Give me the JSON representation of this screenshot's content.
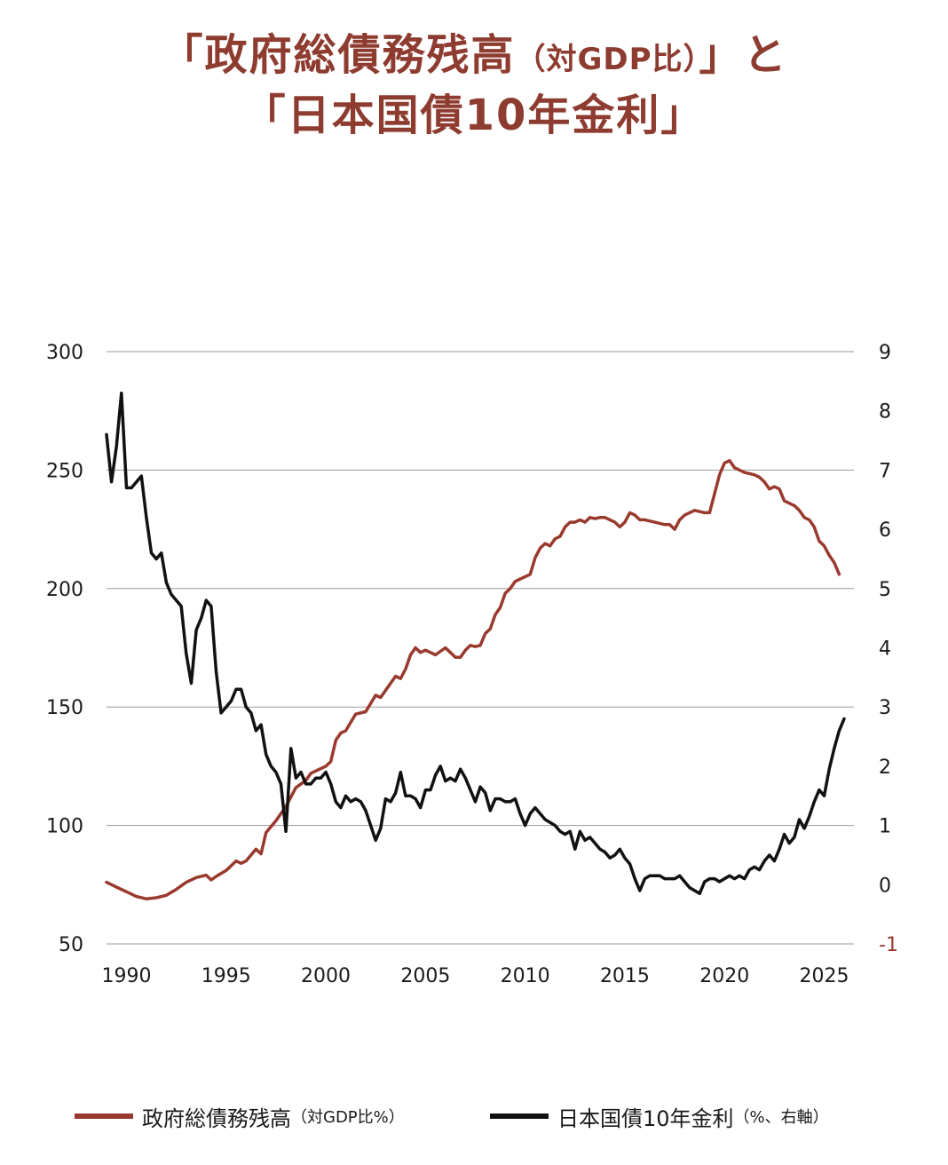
{
  "title": {
    "line1_main": "「政府総債務残高",
    "line1_paren": "（対GDP比）",
    "line1_end": "」と",
    "line2": "「日本国債10年金利」"
  },
  "legend": {
    "debt_label": "政府総債務残高",
    "debt_paren": "（対GDP比%）",
    "yield_label": "日本国債10年金利",
    "yield_paren": "（%、右軸）"
  },
  "colors": {
    "debt": "#9a3a2e",
    "yield": "#111111",
    "grid": "#9a9a9a",
    "right_axis_negative": "#9a3a2e"
  },
  "chart_data": {
    "type": "line",
    "left_axis": {
      "ylim": [
        50,
        300
      ],
      "ticks": [
        "300",
        "250",
        "200",
        "150",
        "100",
        "50"
      ]
    },
    "right_axis": {
      "ylim": [
        -1,
        9
      ],
      "ticks": [
        "9",
        "8",
        "7",
        "6",
        "5",
        "4",
        "3",
        "2",
        "1",
        "0",
        "-1"
      ]
    },
    "x_axis": {
      "xlim": [
        1989,
        2026
      ],
      "ticks": [
        "1990",
        "1995",
        "2000",
        "2005",
        "2010",
        "2015",
        "2020",
        "2025"
      ]
    },
    "grid": "horizontal",
    "series": [
      {
        "name": "政府総債務残高（対GDP比%）",
        "axis": "left",
        "points": [
          [
            1989.0,
            76
          ],
          [
            1989.5,
            74
          ],
          [
            1990.0,
            72
          ],
          [
            1990.5,
            70
          ],
          [
            1991.0,
            69
          ],
          [
            1991.5,
            69.5
          ],
          [
            1992.0,
            70.5
          ],
          [
            1992.5,
            73
          ],
          [
            1993.0,
            76
          ],
          [
            1993.5,
            78
          ],
          [
            1994.0,
            79
          ],
          [
            1994.25,
            77
          ],
          [
            1994.5,
            78.5
          ],
          [
            1995.0,
            81
          ],
          [
            1995.5,
            85
          ],
          [
            1995.75,
            84
          ],
          [
            1996.0,
            85
          ],
          [
            1996.5,
            90
          ],
          [
            1996.75,
            88
          ],
          [
            1997.0,
            97
          ],
          [
            1997.5,
            102
          ],
          [
            1998.0,
            108
          ],
          [
            1998.5,
            116
          ],
          [
            1999.0,
            119
          ],
          [
            1999.25,
            122
          ],
          [
            1999.5,
            123
          ],
          [
            2000.0,
            125
          ],
          [
            2000.25,
            127
          ],
          [
            2000.5,
            136
          ],
          [
            2000.75,
            139
          ],
          [
            2001.0,
            140
          ],
          [
            2001.5,
            147
          ],
          [
            2002.0,
            148
          ],
          [
            2002.5,
            155
          ],
          [
            2002.75,
            154
          ],
          [
            2003.0,
            157
          ],
          [
            2003.5,
            163
          ],
          [
            2003.75,
            162
          ],
          [
            2004.0,
            166
          ],
          [
            2004.25,
            172
          ],
          [
            2004.5,
            175
          ],
          [
            2004.75,
            173
          ],
          [
            2005.0,
            174
          ],
          [
            2005.5,
            172
          ],
          [
            2006.0,
            175
          ],
          [
            2006.25,
            173
          ],
          [
            2006.5,
            171
          ],
          [
            2006.75,
            171
          ],
          [
            2007.0,
            174
          ],
          [
            2007.25,
            176
          ],
          [
            2007.5,
            175.5
          ],
          [
            2007.75,
            176
          ],
          [
            2008.0,
            181
          ],
          [
            2008.25,
            183
          ],
          [
            2008.5,
            189
          ],
          [
            2008.75,
            192
          ],
          [
            2009.0,
            198
          ],
          [
            2009.25,
            200
          ],
          [
            2009.5,
            203
          ],
          [
            2009.75,
            204
          ],
          [
            2010.0,
            205
          ],
          [
            2010.25,
            206
          ],
          [
            2010.5,
            213
          ],
          [
            2010.75,
            217
          ],
          [
            2011.0,
            219
          ],
          [
            2011.25,
            218
          ],
          [
            2011.5,
            221
          ],
          [
            2011.75,
            222
          ],
          [
            2012.0,
            226
          ],
          [
            2012.25,
            228
          ],
          [
            2012.5,
            228
          ],
          [
            2012.75,
            229
          ],
          [
            2013.0,
            228
          ],
          [
            2013.25,
            230
          ],
          [
            2013.5,
            229.5
          ],
          [
            2013.75,
            230
          ],
          [
            2014.0,
            230
          ],
          [
            2014.5,
            228
          ],
          [
            2014.75,
            226
          ],
          [
            2015.0,
            228
          ],
          [
            2015.25,
            232
          ],
          [
            2015.5,
            231
          ],
          [
            2015.75,
            229
          ],
          [
            2016.0,
            229
          ],
          [
            2016.5,
            228
          ],
          [
            2017.0,
            227
          ],
          [
            2017.25,
            227
          ],
          [
            2017.5,
            225
          ],
          [
            2017.75,
            229
          ],
          [
            2018.0,
            231
          ],
          [
            2018.25,
            232
          ],
          [
            2018.5,
            233
          ],
          [
            2019.0,
            232
          ],
          [
            2019.25,
            232
          ],
          [
            2019.5,
            240
          ],
          [
            2019.75,
            248
          ],
          [
            2020.0,
            253
          ],
          [
            2020.25,
            254
          ],
          [
            2020.5,
            251
          ],
          [
            2021.0,
            249
          ],
          [
            2021.5,
            248
          ],
          [
            2021.75,
            247
          ],
          [
            2022.0,
            245
          ],
          [
            2022.25,
            242
          ],
          [
            2022.5,
            243
          ],
          [
            2022.75,
            242
          ],
          [
            2023.0,
            237
          ],
          [
            2023.5,
            235
          ],
          [
            2023.75,
            233
          ],
          [
            2024.0,
            230
          ],
          [
            2024.25,
            229
          ],
          [
            2024.5,
            226
          ],
          [
            2024.75,
            220
          ],
          [
            2025.0,
            218
          ],
          [
            2025.25,
            214
          ],
          [
            2025.5,
            211
          ],
          [
            2025.75,
            206
          ]
        ]
      },
      {
        "name": "日本国債10年金利（%、右軸）",
        "axis": "right",
        "points": [
          [
            1989.0,
            7.6
          ],
          [
            1989.25,
            6.8
          ],
          [
            1989.5,
            7.4
          ],
          [
            1989.75,
            8.3
          ],
          [
            1990.0,
            6.7
          ],
          [
            1990.25,
            6.7
          ],
          [
            1990.5,
            6.8
          ],
          [
            1990.75,
            6.9
          ],
          [
            1991.0,
            6.2
          ],
          [
            1991.25,
            5.6
          ],
          [
            1991.5,
            5.5
          ],
          [
            1991.75,
            5.6
          ],
          [
            1992.0,
            5.1
          ],
          [
            1992.25,
            4.9
          ],
          [
            1992.5,
            4.8
          ],
          [
            1992.75,
            4.7
          ],
          [
            1993.0,
            3.9
          ],
          [
            1993.25,
            3.4
          ],
          [
            1993.5,
            4.3
          ],
          [
            1993.75,
            4.5
          ],
          [
            1994.0,
            4.8
          ],
          [
            1994.25,
            4.7
          ],
          [
            1994.5,
            3.6
          ],
          [
            1994.75,
            2.9
          ],
          [
            1995.0,
            3.0
          ],
          [
            1995.25,
            3.1
          ],
          [
            1995.5,
            3.3
          ],
          [
            1995.75,
            3.3
          ],
          [
            1996.0,
            3.0
          ],
          [
            1996.25,
            2.9
          ],
          [
            1996.5,
            2.6
          ],
          [
            1996.75,
            2.7
          ],
          [
            1997.0,
            2.2
          ],
          [
            1997.25,
            2.0
          ],
          [
            1997.5,
            1.9
          ],
          [
            1997.75,
            1.7
          ],
          [
            1998.0,
            0.9
          ],
          [
            1998.25,
            2.3
          ],
          [
            1998.5,
            1.8
          ],
          [
            1998.75,
            1.9
          ],
          [
            1999.0,
            1.7
          ],
          [
            1999.25,
            1.7
          ],
          [
            1999.5,
            1.8
          ],
          [
            1999.75,
            1.8
          ],
          [
            2000.0,
            1.9
          ],
          [
            2000.25,
            1.7
          ],
          [
            2000.5,
            1.4
          ],
          [
            2000.75,
            1.3
          ],
          [
            2001.0,
            1.5
          ],
          [
            2001.25,
            1.4
          ],
          [
            2001.5,
            1.45
          ],
          [
            2001.75,
            1.4
          ],
          [
            2002.0,
            1.25
          ],
          [
            2002.25,
            1.0
          ],
          [
            2002.5,
            0.75
          ],
          [
            2002.75,
            0.95
          ],
          [
            2003.0,
            1.45
          ],
          [
            2003.25,
            1.4
          ],
          [
            2003.5,
            1.55
          ],
          [
            2003.75,
            1.9
          ],
          [
            2004.0,
            1.5
          ],
          [
            2004.25,
            1.5
          ],
          [
            2004.5,
            1.45
          ],
          [
            2004.75,
            1.3
          ],
          [
            2005.0,
            1.6
          ],
          [
            2005.25,
            1.6
          ],
          [
            2005.5,
            1.85
          ],
          [
            2005.75,
            2.0
          ],
          [
            2006.0,
            1.75
          ],
          [
            2006.25,
            1.8
          ],
          [
            2006.5,
            1.75
          ],
          [
            2006.75,
            1.95
          ],
          [
            2007.0,
            1.8
          ],
          [
            2007.25,
            1.6
          ],
          [
            2007.5,
            1.4
          ],
          [
            2007.75,
            1.65
          ],
          [
            2008.0,
            1.55
          ],
          [
            2008.25,
            1.25
          ],
          [
            2008.5,
            1.45
          ],
          [
            2008.75,
            1.45
          ],
          [
            2009.0,
            1.4
          ],
          [
            2009.25,
            1.4
          ],
          [
            2009.5,
            1.45
          ],
          [
            2009.75,
            1.2
          ],
          [
            2010.0,
            1.0
          ],
          [
            2010.25,
            1.2
          ],
          [
            2010.5,
            1.3
          ],
          [
            2010.75,
            1.2
          ],
          [
            2011.0,
            1.1
          ],
          [
            2011.25,
            1.05
          ],
          [
            2011.5,
            1.0
          ],
          [
            2011.75,
            0.9
          ],
          [
            2012.0,
            0.85
          ],
          [
            2012.25,
            0.9
          ],
          [
            2012.5,
            0.6
          ],
          [
            2012.75,
            0.9
          ],
          [
            2013.0,
            0.75
          ],
          [
            2013.25,
            0.8
          ],
          [
            2013.5,
            0.7
          ],
          [
            2013.75,
            0.6
          ],
          [
            2014.0,
            0.55
          ],
          [
            2014.25,
            0.45
          ],
          [
            2014.5,
            0.5
          ],
          [
            2014.75,
            0.6
          ],
          [
            2015.0,
            0.45
          ],
          [
            2015.25,
            0.35
          ],
          [
            2015.5,
            0.1
          ],
          [
            2015.75,
            -0.1
          ],
          [
            2016.0,
            0.1
          ],
          [
            2016.25,
            0.15
          ],
          [
            2016.5,
            0.15
          ],
          [
            2016.75,
            0.15
          ],
          [
            2017.0,
            0.1
          ],
          [
            2017.25,
            0.1
          ],
          [
            2017.5,
            0.1
          ],
          [
            2017.75,
            0.15
          ],
          [
            2018.0,
            0.05
          ],
          [
            2018.25,
            -0.05
          ],
          [
            2018.5,
            -0.1
          ],
          [
            2018.75,
            -0.15
          ],
          [
            2019.0,
            0.05
          ],
          [
            2019.25,
            0.1
          ],
          [
            2019.5,
            0.1
          ],
          [
            2019.75,
            0.05
          ],
          [
            2020.0,
            0.1
          ],
          [
            2020.25,
            0.15
          ],
          [
            2020.5,
            0.1
          ],
          [
            2020.75,
            0.15
          ],
          [
            2021.0,
            0.1
          ],
          [
            2021.25,
            0.25
          ],
          [
            2021.5,
            0.3
          ],
          [
            2021.75,
            0.25
          ],
          [
            2022.0,
            0.4
          ],
          [
            2022.25,
            0.5
          ],
          [
            2022.5,
            0.4
          ],
          [
            2022.75,
            0.6
          ],
          [
            2023.0,
            0.85
          ],
          [
            2023.25,
            0.7
          ],
          [
            2023.5,
            0.8
          ],
          [
            2023.75,
            1.1
          ],
          [
            2024.0,
            0.95
          ],
          [
            2024.25,
            1.15
          ],
          [
            2024.5,
            1.4
          ],
          [
            2024.75,
            1.6
          ],
          [
            2025.0,
            1.5
          ],
          [
            2025.25,
            1.95
          ],
          [
            2025.5,
            2.3
          ],
          [
            2025.75,
            2.6
          ],
          [
            2026.0,
            2.8
          ]
        ]
      }
    ]
  }
}
